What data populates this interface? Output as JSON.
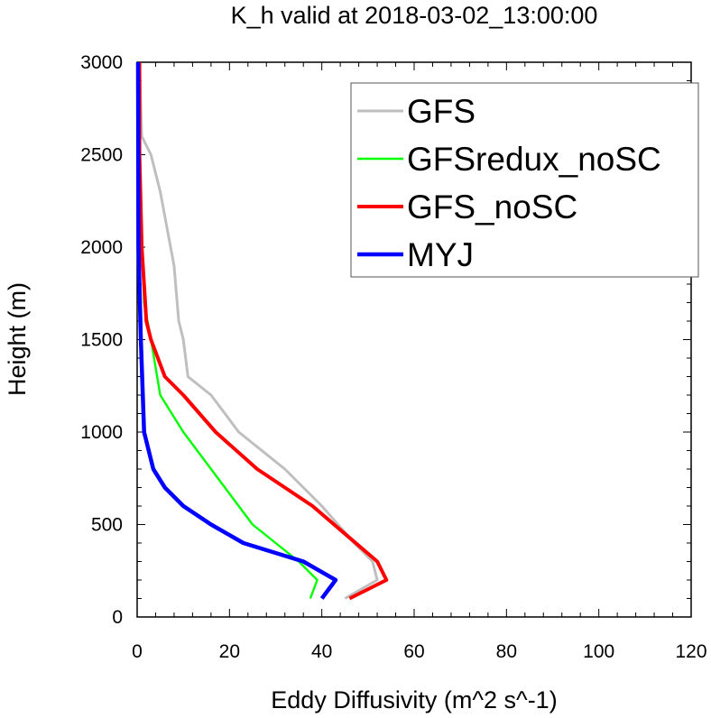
{
  "chart_data": {
    "type": "line",
    "title": "K_h valid at 2018-03-02_13:00:00",
    "xlabel": "Eddy Diffusivity (m^2 s^-1)",
    "ylabel": "Height (m)",
    "xlim": [
      0,
      120
    ],
    "ylim": [
      0,
      3000
    ],
    "xticks": [
      0,
      20,
      40,
      60,
      80,
      100,
      120
    ],
    "yticks": [
      0,
      500,
      1000,
      1500,
      2000,
      2500,
      3000
    ],
    "xtick_labels": [
      "0",
      "20",
      "40",
      "60",
      "80",
      "100",
      "120"
    ],
    "ytick_labels": [
      "0",
      "500",
      "1000",
      "1500",
      "2000",
      "2500",
      "3000"
    ],
    "legend_position": "top-right",
    "grid": false,
    "series": [
      {
        "name": "GFS",
        "color": "#bfbfbf",
        "x": [
          45,
          52,
          51,
          47,
          40,
          32,
          22,
          16,
          11,
          10,
          9,
          8,
          5,
          3,
          1,
          0.5
        ],
        "y": [
          100,
          200,
          300,
          400,
          600,
          800,
          1000,
          1200,
          1300,
          1500,
          1600,
          1900,
          2300,
          2500,
          2600,
          3000
        ]
      },
      {
        "name": "GFSredux_noSC",
        "color": "#00ff00",
        "x": [
          37.5,
          39,
          35,
          25,
          16,
          10,
          5,
          3,
          1.5,
          1,
          0.8,
          0.5,
          0.3,
          0.2
        ],
        "y": [
          100,
          200,
          300,
          500,
          800,
          1000,
          1200,
          1500,
          1700,
          2000,
          2300,
          2500,
          2700,
          3000
        ]
      },
      {
        "name": "GFS_noSC",
        "color": "#ff0000",
        "x": [
          46,
          54,
          52,
          45,
          38,
          26,
          17,
          10,
          6,
          3,
          2,
          1.5,
          1,
          0.5,
          0.5
        ],
        "y": [
          100,
          200,
          300,
          450,
          600,
          800,
          1000,
          1200,
          1300,
          1500,
          1600,
          1800,
          2000,
          2500,
          3000
        ]
      },
      {
        "name": "MYJ",
        "color": "#0000ff",
        "x": [
          40,
          43,
          36,
          23,
          16,
          10,
          6,
          3.5,
          1.5,
          0.8,
          0.3,
          0.2
        ],
        "y": [
          100,
          200,
          300,
          400,
          500,
          600,
          700,
          800,
          1000,
          1500,
          2000,
          3000
        ]
      }
    ]
  }
}
